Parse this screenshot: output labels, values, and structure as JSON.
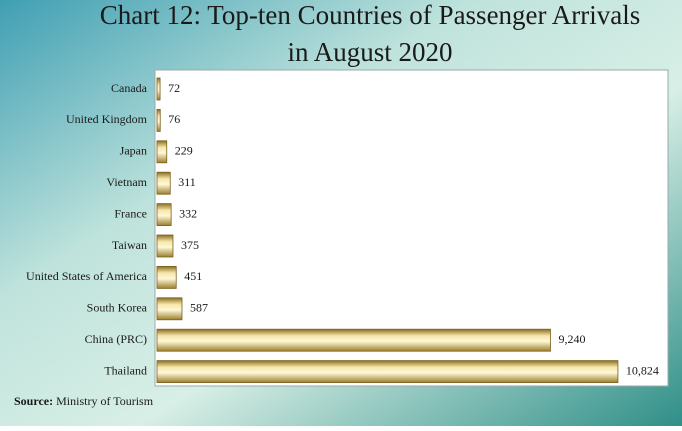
{
  "chart_data": {
    "type": "hbar",
    "title": [
      "Chart 12: Top-ten Countries of Passenger Arrivals",
      "in August 2020"
    ],
    "categories": [
      "Canada",
      "United Kingdom",
      "Japan",
      "Vietnam",
      "France",
      "Taiwan",
      "United States of America",
      "South Korea",
      "China (PRC)",
      "Thailand"
    ],
    "values": [
      72,
      76,
      229,
      311,
      332,
      375,
      451,
      587,
      9240,
      10824
    ],
    "value_labels": [
      "72",
      "76",
      "229",
      "311",
      "332",
      "375",
      "451",
      "587",
      "9,240",
      "10,824"
    ],
    "color": "#d9bf5c",
    "xlim": [
      0,
      12000
    ],
    "source_label": "Source:",
    "source_text": "Ministry of Tourism"
  }
}
